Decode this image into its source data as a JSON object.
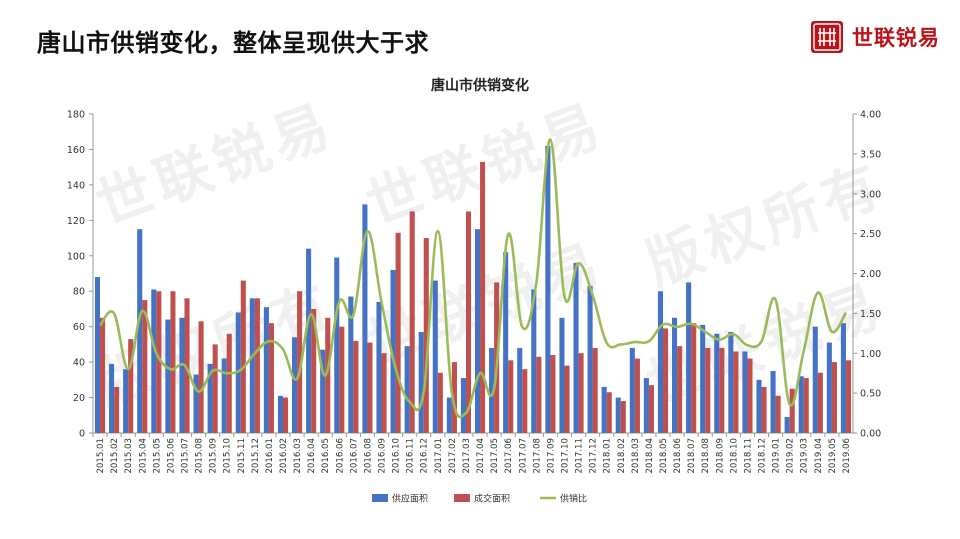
{
  "header": {
    "title": "唐山市供销变化，整体呈现供大于求"
  },
  "brand": {
    "name": "世联锐易",
    "logo_icon": "shilian-logo-icon",
    "color": "#b9141a"
  },
  "watermarks": [
    "世联锐易",
    "世联锐易",
    "版权所有",
    "版权所有",
    "世联锐易",
    "世联锐易"
  ],
  "chart_data": {
    "type": "bar",
    "title": "唐山市供销变化",
    "categories": [
      "2015.01",
      "2015.02",
      "2015.03",
      "2015.04",
      "2015.05",
      "2015.06",
      "2015.07",
      "2015.08",
      "2015.09",
      "2015.10",
      "2015.11",
      "2015.12",
      "2016.01",
      "2016.02",
      "2016.03",
      "2016.04",
      "2016.05",
      "2016.06",
      "2016.07",
      "2016.08",
      "2016.09",
      "2016.10",
      "2016.11",
      "2016.12",
      "2017.01",
      "2017.02",
      "2017.03",
      "2017.04",
      "2017.05",
      "2017.06",
      "2017.07",
      "2017.08",
      "2017.09",
      "2017.10",
      "2017.11",
      "2017.12",
      "2018.01",
      "2018.02",
      "2018.03",
      "2018.04",
      "2018.05",
      "2018.06",
      "2018.07",
      "2018.08",
      "2018.09",
      "2018.10",
      "2018.11",
      "2018.12",
      "2019.01",
      "2019.02",
      "2019.03",
      "2019.04",
      "2019.05",
      "2019.06"
    ],
    "series": [
      {
        "name": "供应面积",
        "color": "#4472c4",
        "axis": "left",
        "values": [
          88,
          39,
          36,
          115,
          81,
          64,
          65,
          33,
          39,
          42,
          68,
          76,
          71,
          21,
          54,
          104,
          47,
          99,
          77,
          129,
          74,
          92,
          49,
          57,
          86,
          20,
          31,
          115,
          48,
          102,
          48,
          81,
          162,
          65,
          96,
          83,
          26,
          20,
          48,
          31,
          80,
          65,
          85,
          61,
          56,
          57,
          46,
          30,
          35,
          9,
          32,
          60,
          51,
          62
        ]
      },
      {
        "name": "成交面积",
        "color": "#c0504d",
        "axis": "left",
        "values": [
          65,
          26,
          53,
          75,
          80,
          80,
          76,
          63,
          50,
          56,
          86,
          76,
          62,
          20,
          80,
          70,
          65,
          60,
          52,
          51,
          45,
          113,
          125,
          110,
          34,
          40,
          125,
          153,
          85,
          41,
          36,
          43,
          44,
          38,
          45,
          48,
          23,
          18,
          42,
          27,
          59,
          49,
          62,
          48,
          48,
          46,
          42,
          26,
          21,
          25,
          31,
          34,
          40,
          41
        ]
      },
      {
        "name": "供销比",
        "color": "#9bbb59",
        "axis": "right",
        "type": "line",
        "values": [
          1.35,
          1.5,
          0.8,
          1.53,
          1.0,
          0.8,
          0.85,
          0.52,
          0.78,
          0.75,
          0.79,
          1.0,
          1.15,
          1.05,
          0.68,
          1.49,
          0.72,
          1.65,
          1.48,
          2.53,
          1.64,
          0.81,
          0.39,
          0.52,
          2.53,
          0.5,
          0.25,
          0.75,
          0.56,
          2.49,
          1.33,
          1.88,
          3.68,
          1.71,
          2.13,
          1.73,
          1.13,
          1.11,
          1.14,
          1.15,
          1.36,
          1.33,
          1.37,
          1.27,
          1.17,
          1.24,
          1.1,
          1.15,
          1.67,
          0.36,
          1.03,
          1.76,
          1.27,
          1.51
        ]
      }
    ],
    "ylim_left": [
      0,
      180
    ],
    "yticks_left": [
      "0",
      "20",
      "40",
      "60",
      "80",
      "100",
      "120",
      "140",
      "160",
      "180"
    ],
    "ylim_right": [
      0,
      4
    ],
    "yticks_right": [
      "0.00",
      "0.50",
      "1.00",
      "1.50",
      "2.00",
      "2.50",
      "3.00",
      "3.50",
      "4.00"
    ],
    "grid": false,
    "legend": {
      "position": "bottom",
      "items": [
        "供应面积",
        "成交面积",
        "供销比"
      ]
    }
  }
}
